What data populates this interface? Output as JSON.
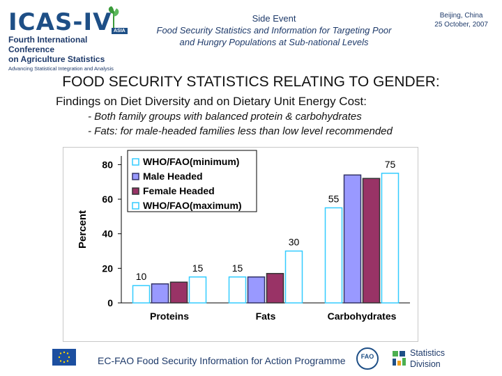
{
  "header": {
    "logo_text": "ICAS-IV",
    "logo_badge": "ASIA",
    "conference_line1": "Fourth International Conference",
    "conference_line2": "on Agriculture Statistics",
    "tagline": "Advancing Statistical Integration and Analysis",
    "event_title": "Side Event",
    "event_sub1": "Food Security Statistics and Information for Targeting Poor",
    "event_sub2": "and Hungry Populations at Sub-national Levels",
    "city": "Beijing, China",
    "date": "25 October, 2007"
  },
  "title": "FOOD SECURITY STATISTICS RELATING TO GENDER:",
  "findings": "Findings on Diet Diversity and on Dietary Unit Energy Cost:",
  "bullets": [
    "- Both family groups with balanced protein & carbohydrates",
    "- Fats: for male-headed families less than low level recommended"
  ],
  "chart_data": {
    "type": "bar",
    "categories": [
      "Proteins",
      "Fats",
      "Carbohydrates"
    ],
    "series": [
      {
        "name": "WHO/FAO(minimum)",
        "values": [
          10,
          15,
          55
        ],
        "color": "#ffffff",
        "stroke": "#33ccff"
      },
      {
        "name": "Male Headed",
        "values": [
          11,
          15,
          74
        ],
        "color": "#9999ff",
        "stroke": "#333366"
      },
      {
        "name": "Female Headed",
        "values": [
          12,
          17,
          72
        ],
        "color": "#993366",
        "stroke": "#333333"
      },
      {
        "name": "WHO/FAO(maximum)",
        "values": [
          15,
          30,
          75
        ],
        "color": "#ffffff",
        "stroke": "#33ccff"
      }
    ],
    "data_labels": [
      {
        "category": 0,
        "series": 0,
        "text": "10"
      },
      {
        "category": 0,
        "series": 3,
        "text": "15"
      },
      {
        "category": 1,
        "series": 0,
        "text": "15"
      },
      {
        "category": 1,
        "series": 3,
        "text": "30"
      },
      {
        "category": 2,
        "series": 0,
        "text": "55"
      },
      {
        "category": 2,
        "series": 3,
        "text": "75"
      }
    ],
    "ylabel": "Percent",
    "ylim": [
      0,
      85
    ],
    "yticks": [
      0,
      20,
      40,
      60,
      80
    ],
    "grid": false,
    "legend": "top-left"
  },
  "footer": {
    "program": "EC-FAO Food Security Information for Action Programme",
    "fao_mark": "FAO",
    "stats_line1": "Statistics",
    "stats_line2": "Division"
  },
  "colors": {
    "brand": "#1e4f86",
    "fao_blue": "#1e4f86"
  },
  "icons": [
    "leaf-icon",
    "eu-flag-icon",
    "fao-logo-icon",
    "statistics-division-icon"
  ]
}
